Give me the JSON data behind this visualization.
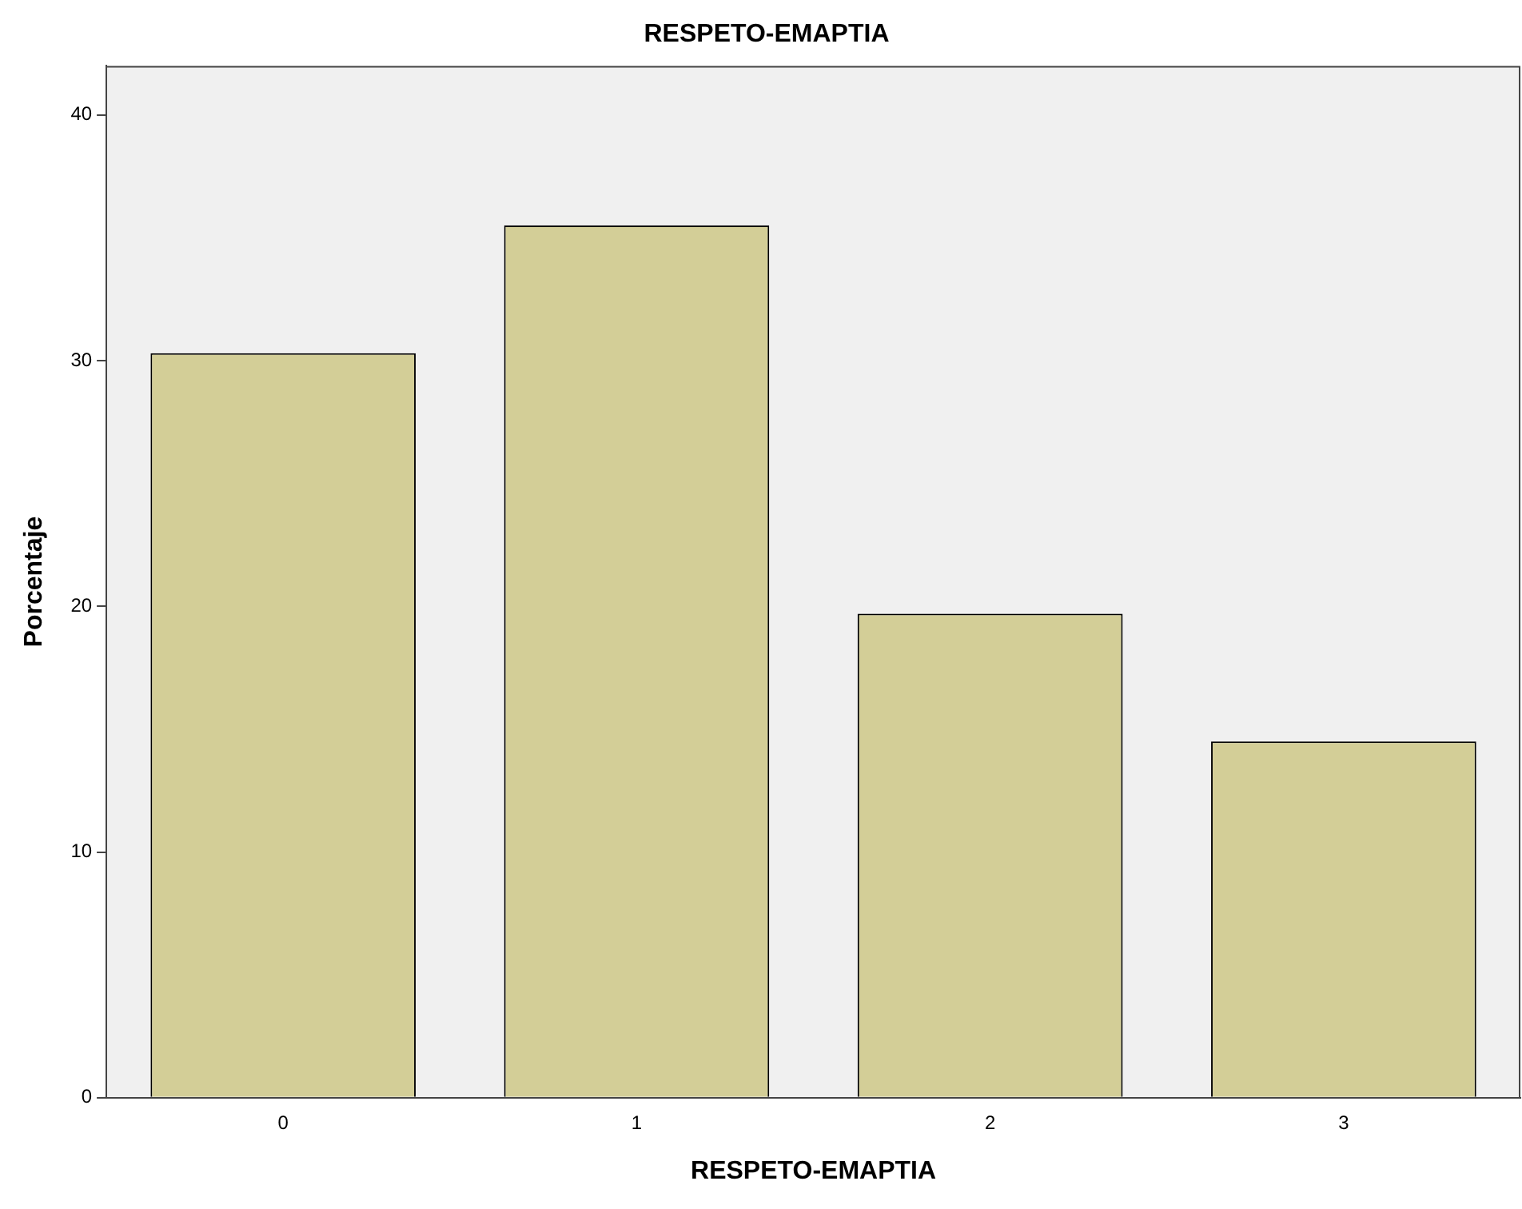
{
  "chart_data": {
    "type": "bar",
    "title": "RESPETO-EMAPTIA",
    "xlabel": "RESPETO-EMAPTIA",
    "ylabel": "Porcentaje",
    "categories": [
      "0",
      "1",
      "2",
      "3"
    ],
    "values": [
      30.3,
      35.5,
      19.7,
      14.5
    ],
    "color": "#d3ce97",
    "ylim": [
      0,
      42
    ],
    "yticks": [
      0,
      10,
      20,
      30,
      40
    ],
    "grid": false,
    "legend": false
  }
}
